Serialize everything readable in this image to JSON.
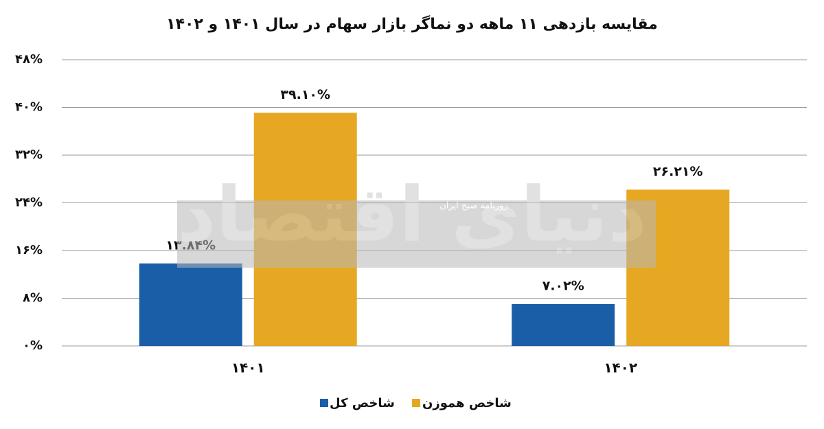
{
  "chart_data": {
    "type": "bar",
    "title": "مقایسه بازدهی ۱۱ ماهه دو نماگر بازار سهام در سال ۱۴۰۱ و ۱۴۰۲",
    "categories": [
      "۱۴۰۱",
      "۱۴۰۲"
    ],
    "series": [
      {
        "name": "شاخص کل",
        "color": "#1a5ea8",
        "values": [
          13.84,
          7.02
        ],
        "value_labels": [
          "۱۳.۸۴%",
          "۷.۰۲%"
        ]
      },
      {
        "name": "شاخص هموزن",
        "color": "#e6a823",
        "values": [
          39.1,
          26.21
        ],
        "value_labels": [
          "۳۹.۱۰%",
          "۲۶.۲۱%"
        ]
      }
    ],
    "ylim": [
      0,
      48
    ],
    "yticks": [
      {
        "value": 0,
        "label": "۰%"
      },
      {
        "value": 8,
        "label": "۸%"
      },
      {
        "value": 16,
        "label": "۱۶%"
      },
      {
        "value": 24,
        "label": "۲۴%"
      },
      {
        "value": 32,
        "label": "۳۲%"
      },
      {
        "value": 40,
        "label": "۴۰%"
      },
      {
        "value": 48,
        "label": "۴۸%"
      }
    ],
    "grid": true,
    "legend": "bottom",
    "watermark": {
      "title": "دنیای اقتصاد",
      "subtitle": "روزنامه صبح ایران"
    }
  }
}
